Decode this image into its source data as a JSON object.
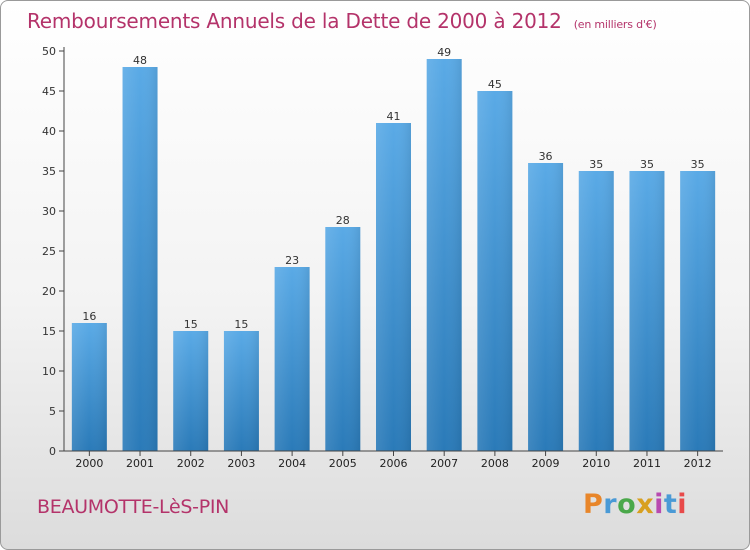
{
  "header": {
    "title": "Remboursements Annuels de la Dette de 2000 à 2012",
    "unit": "(en milliers d'€)"
  },
  "footer": {
    "commune": "BEAUMOTTE-LèS-PIN",
    "logo": "Proxiti"
  },
  "colors": {
    "title": "#b4336a",
    "bar_top": "#5aaae6",
    "bar_bottom": "#2a7ab8",
    "logo_letters": [
      "#e8862a",
      "#4a9ad6",
      "#4aa84a",
      "#d8a020",
      "#b84ab0",
      "#4a9ad6",
      "#e84a4a"
    ]
  },
  "chart_data": {
    "type": "bar",
    "categories": [
      "2000",
      "2001",
      "2002",
      "2003",
      "2004",
      "2005",
      "2006",
      "2007",
      "2008",
      "2009",
      "2010",
      "2011",
      "2012"
    ],
    "values": [
      16,
      48,
      15,
      15,
      23,
      28,
      41,
      49,
      45,
      36,
      35,
      35,
      35
    ],
    "title": "Remboursements Annuels de la Dette de 2000 à 2012",
    "xlabel": "",
    "ylabel": "",
    "ylim": [
      0,
      50
    ],
    "yticks": [
      0,
      5,
      10,
      15,
      20,
      25,
      30,
      35,
      40,
      45,
      50
    ],
    "grid": false,
    "data_labels": true
  }
}
